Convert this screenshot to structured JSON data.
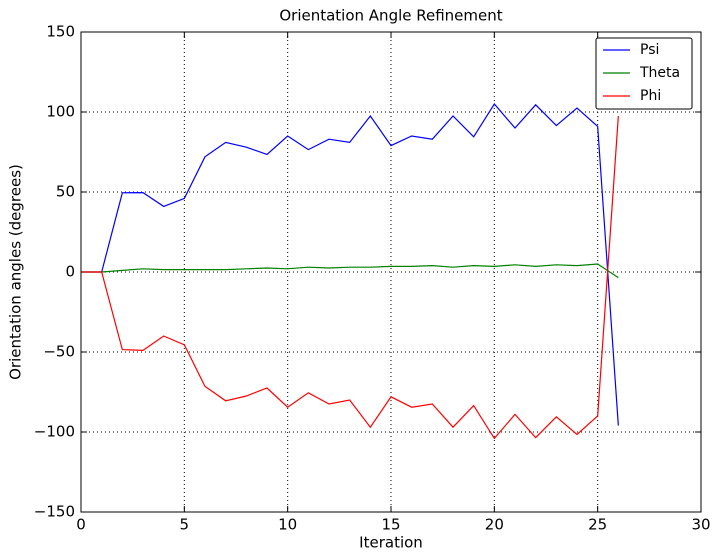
{
  "chart_data": {
    "type": "line",
    "title": "Orientation Angle Refinement",
    "xlabel": "Iteration",
    "ylabel": "Orientation angles (degrees)",
    "x": [
      0,
      1,
      2,
      3,
      4,
      5,
      6,
      7,
      8,
      9,
      10,
      11,
      12,
      13,
      14,
      15,
      16,
      17,
      18,
      19,
      20,
      21,
      22,
      23,
      24,
      25,
      26
    ],
    "series": [
      {
        "name": "Psi",
        "color": "#0000ff",
        "values": [
          0,
          0,
          49.5,
          49.6,
          41,
          46,
          72,
          81,
          78,
          73.5,
          85,
          76.5,
          83,
          81,
          97.5,
          79,
          85,
          83,
          97.5,
          84.5,
          105,
          90,
          104.5,
          91.5,
          102.5,
          91,
          -96
        ]
      },
      {
        "name": "Theta",
        "color": "#008000",
        "values": [
          0,
          0,
          1,
          2,
          1.5,
          1.5,
          1.5,
          1.5,
          2,
          2.5,
          2,
          3,
          2.5,
          3,
          3,
          3.5,
          3.5,
          4,
          3,
          4,
          3.5,
          4.5,
          3.5,
          4.5,
          4,
          5,
          -3.5
        ]
      },
      {
        "name": "Phi",
        "color": "#ff0000",
        "values": [
          0,
          0,
          -48.5,
          -49,
          -40,
          -45.5,
          -71.5,
          -80.5,
          -77.5,
          -72.5,
          -84.5,
          -75.5,
          -82.5,
          -80,
          -97,
          -78,
          -84.5,
          -82.5,
          -97,
          -83.5,
          -104,
          -89,
          -103.5,
          -90.5,
          -101.5,
          -90,
          97.5
        ]
      }
    ],
    "xlim": [
      0,
      30
    ],
    "xticks": [
      0,
      5,
      10,
      15,
      20,
      25,
      30
    ],
    "ylim": [
      -150,
      150
    ],
    "yticks": [
      {
        "value": -150,
        "label": "−150"
      },
      {
        "value": -100,
        "label": "−100"
      },
      {
        "value": -50,
        "label": "−50"
      },
      0,
      50,
      100,
      150
    ],
    "grid": true,
    "legend": "upper right"
  }
}
